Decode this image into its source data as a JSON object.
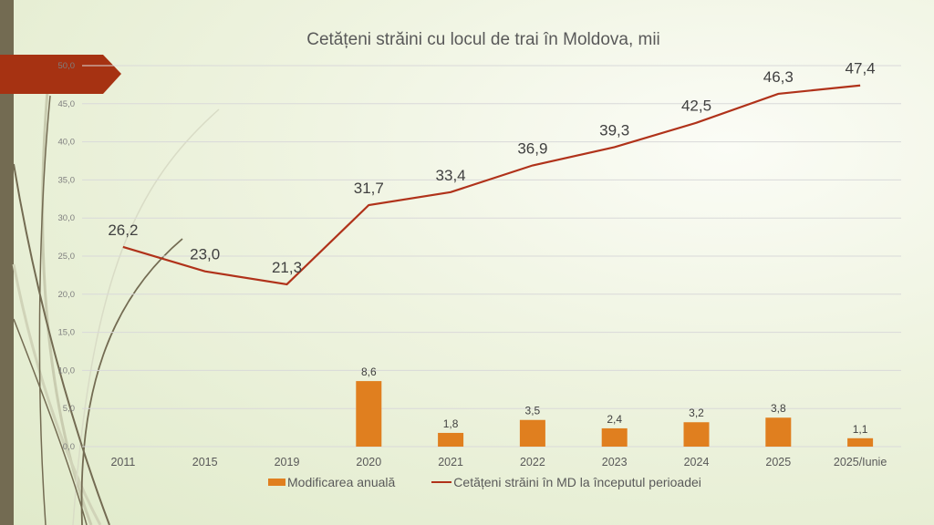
{
  "chart_data": {
    "type": "bar+line",
    "title": "Cetățeni străini cu locul de trai în Moldova, mii",
    "categories": [
      "2011",
      "2015",
      "2019",
      "2020",
      "2021",
      "2022",
      "2023",
      "2024",
      "2025",
      "2025/Iunie"
    ],
    "series": [
      {
        "name": "Modificarea anuală",
        "type": "bar",
        "color": "#e07f1f",
        "values": [
          null,
          null,
          null,
          8.6,
          1.8,
          3.5,
          2.4,
          3.2,
          3.8,
          1.1
        ],
        "labels": [
          "",
          "",
          "",
          "8,6",
          "1,8",
          "3,5",
          "2,4",
          "3,2",
          "3,8",
          "1,1"
        ]
      },
      {
        "name": "Cetățeni străini în MD la începutul perioadei",
        "type": "line",
        "color": "#b0321a",
        "values": [
          26.2,
          23.0,
          21.3,
          31.7,
          33.4,
          36.9,
          39.3,
          42.5,
          46.3,
          47.4
        ],
        "labels": [
          "26,2",
          "23,0",
          "21,3",
          "31,7",
          "33,4",
          "36,9",
          "39,3",
          "42,5",
          "46,3",
          "47,4"
        ]
      }
    ],
    "yticks": [
      "0,0",
      "5,0",
      "10,0",
      "15,0",
      "20,0",
      "25,0",
      "30,0",
      "35,0",
      "40,0",
      "45,0",
      "50,0"
    ],
    "ylim": [
      0,
      50
    ],
    "grid": true,
    "legend_position": "bottom"
  }
}
